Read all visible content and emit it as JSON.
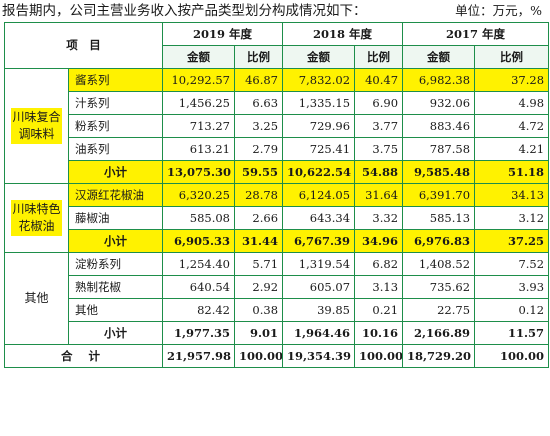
{
  "intro": "报告期内，公司主营业务收入按产品类型划分构成情况如下：",
  "unit": "单位：万元，%",
  "header": {
    "item": "项　目",
    "years": [
      "2019 年度",
      "2018 年度",
      "2017 年度"
    ],
    "amount": "金额",
    "ratio": "比例"
  },
  "groups": [
    {
      "category": "川味复合调味料",
      "category_lines": [
        "川味复合",
        "调味料"
      ],
      "rows": [
        {
          "name": "酱系列",
          "values": [
            "10,292.57",
            "46.87",
            "7,832.02",
            "40.47",
            "6,982.38",
            "37.28"
          ],
          "highlight": true
        },
        {
          "name": "汁系列",
          "values": [
            "1,456.25",
            "6.63",
            "1,335.15",
            "6.90",
            "932.06",
            "4.98"
          ],
          "highlight": false
        },
        {
          "name": "粉系列",
          "values": [
            "713.27",
            "3.25",
            "729.96",
            "3.77",
            "883.46",
            "4.72"
          ],
          "highlight": false
        },
        {
          "name": "油系列",
          "values": [
            "613.21",
            "2.79",
            "725.41",
            "3.75",
            "787.58",
            "4.21"
          ],
          "highlight": false
        }
      ],
      "subtotal": {
        "name": "小计",
        "values": [
          "13,075.30",
          "59.55",
          "10,622.54",
          "54.88",
          "9,585.48",
          "51.18"
        ],
        "highlight": true
      }
    },
    {
      "category": "川味特色花椒油",
      "category_lines": [
        "川味特色",
        "花椒油"
      ],
      "rows": [
        {
          "name": "汉源红花椒油",
          "values": [
            "6,320.25",
            "28.78",
            "6,124.05",
            "31.64",
            "6,391.70",
            "34.13"
          ],
          "highlight": true
        },
        {
          "name": "藤椒油",
          "values": [
            "585.08",
            "2.66",
            "643.34",
            "3.32",
            "585.13",
            "3.12"
          ],
          "highlight": false
        }
      ],
      "subtotal": {
        "name": "小计",
        "values": [
          "6,905.33",
          "31.44",
          "6,767.39",
          "34.96",
          "6,976.83",
          "37.25"
        ],
        "highlight": true
      }
    },
    {
      "category": "其他",
      "category_lines": [
        "其他"
      ],
      "rows": [
        {
          "name": "淀粉系列",
          "values": [
            "1,254.40",
            "5.71",
            "1,319.54",
            "6.82",
            "1,408.52",
            "7.52"
          ],
          "highlight": false
        },
        {
          "name": "熟制花椒",
          "values": [
            "640.54",
            "2.92",
            "605.07",
            "3.13",
            "735.62",
            "3.93"
          ],
          "highlight": false
        },
        {
          "name": "其他",
          "values": [
            "82.42",
            "0.38",
            "39.85",
            "0.21",
            "22.75",
            "0.12"
          ],
          "highlight": false
        }
      ],
      "subtotal": {
        "name": "小计",
        "values": [
          "1,977.35",
          "9.01",
          "1,964.46",
          "10.16",
          "2,166.89",
          "11.57"
        ],
        "highlight": false
      }
    }
  ],
  "total": {
    "name": "合 计",
    "values": [
      "21,957.98",
      "100.00",
      "19,354.39",
      "100.00",
      "18,729.20",
      "100.00"
    ]
  },
  "colors": {
    "border": "#1e8e4a",
    "highlight": "#fff200"
  }
}
